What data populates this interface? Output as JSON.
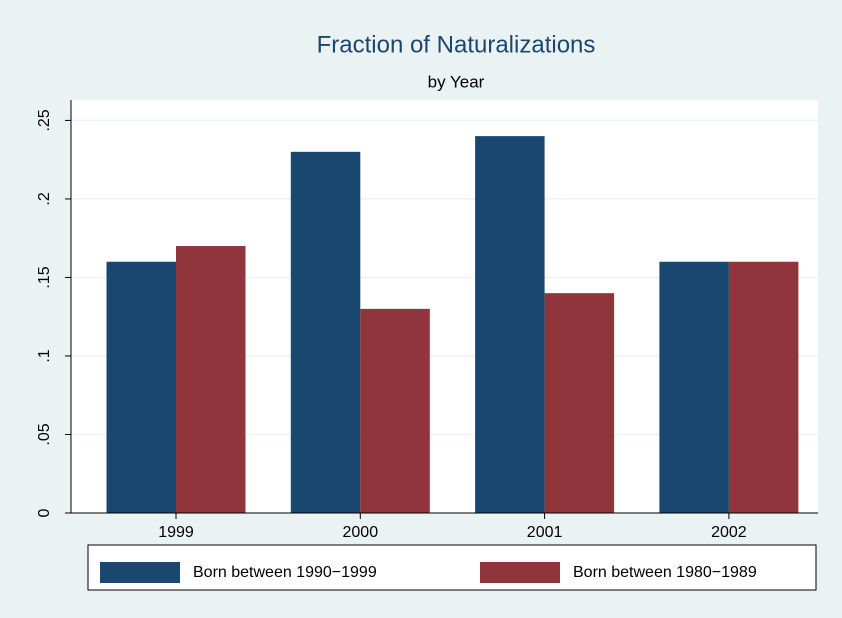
{
  "chart_data": {
    "type": "bar",
    "title": "Fraction of Naturalizations",
    "subtitle": "by Year",
    "categories": [
      "1999",
      "2000",
      "2001",
      "2002"
    ],
    "series": [
      {
        "name": "Born between 1990−1999",
        "color": "#1a476f",
        "values": [
          0.16,
          0.23,
          0.24,
          0.16
        ]
      },
      {
        "name": "Born between 1980−1989",
        "color": "#90353b",
        "values": [
          0.17,
          0.13,
          0.14,
          0.16
        ]
      }
    ],
    "ylim": [
      0,
      0.263
    ],
    "yticks": [
      0,
      {
        "value": 0.05,
        "label": ".05"
      },
      {
        "value": 0.1,
        "label": ".1"
      },
      {
        "value": 0.15,
        "label": ".15"
      },
      {
        "value": 0.2,
        "label": ".2"
      },
      {
        "value": 0.25,
        "label": ".25"
      }
    ],
    "grid": true,
    "legend": "bottom"
  }
}
